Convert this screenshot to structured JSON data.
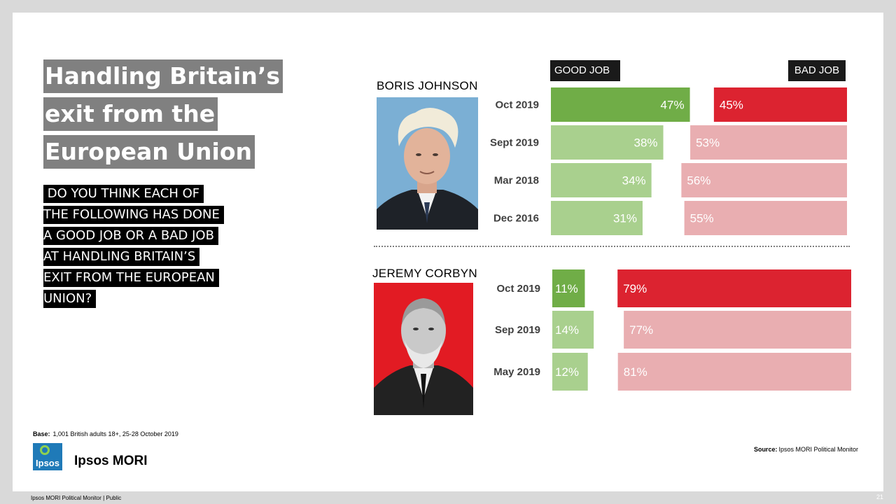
{
  "slide": {
    "title_lines": [
      "Handling Britain’s",
      "exit from the",
      "European Union"
    ],
    "question_lines": [
      " DO YOU THINK EACH OF",
      "THE FOLLOWING HAS DONE",
      "A GOOD JOB OR A BAD JOB",
      "AT HANDLING BRITAIN’S",
      "EXIT FROM THE EUROPEAN",
      "UNION?"
    ],
    "base_label": "Base:",
    "base_text": "1,001 British adults 18+, 25-28 October 2019",
    "logo_box_text": "Ipsos",
    "logo_text": "Ipsos MORI",
    "source_label": "Source:",
    "source_text": "Ipsos MORI Political Monitor",
    "footer": "Ipsos MORI Political Monitor | Public",
    "page_number": "21"
  },
  "legend": {
    "good": "GOOD JOB",
    "bad": "BAD JOB"
  },
  "colors": {
    "good_current": "#70ad47",
    "good_past": "#a9d08e",
    "bad_current": "#dc2330",
    "bad_past": "#e9aeb1",
    "photo_bg_johnson": "#7bafd4",
    "photo_bg_corbyn": "#e21b23"
  },
  "chart_data": [
    {
      "type": "bar",
      "name": "BORIS JOHNSON",
      "categories": [
        "Oct 2019",
        "Sept 2019",
        "Mar 2018",
        "Dec 2016"
      ],
      "series": [
        {
          "name": "GOOD JOB",
          "values": [
            47,
            38,
            34,
            31
          ]
        },
        {
          "name": "BAD JOB",
          "values": [
            45,
            53,
            56,
            55
          ]
        }
      ],
      "value_format": "percent"
    },
    {
      "type": "bar",
      "name": "JEREMY CORBYN",
      "categories": [
        "Oct 2019",
        "Sep 2019",
        "May 2019"
      ],
      "series": [
        {
          "name": "GOOD JOB",
          "values": [
            11,
            14,
            12
          ]
        },
        {
          "name": "BAD JOB",
          "values": [
            79,
            77,
            81
          ]
        }
      ],
      "value_format": "percent"
    }
  ]
}
